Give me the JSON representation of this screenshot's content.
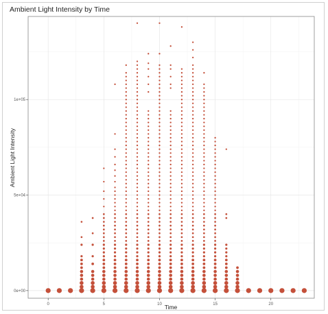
{
  "chart_data": {
    "type": "scatter",
    "title": "Ambient Light Intensity by Time",
    "xlabel": "Time",
    "ylabel": "Ambient Light Intensity",
    "xlim": [
      -1.8,
      23.9
    ],
    "ylim": [
      -4000,
      143500
    ],
    "x_ticks": [
      0,
      5,
      10,
      15,
      20
    ],
    "x_tick_labels": [
      "0",
      "5",
      "10",
      "15",
      "20"
    ],
    "y_ticks": [
      0,
      50000,
      100000
    ],
    "y_tick_labels": [
      "0e+00",
      "5e+04",
      "1e+05"
    ],
    "grid": true,
    "point_color": "#c4503a",
    "series": [
      {
        "x": 0,
        "y": [
          0
        ]
      },
      {
        "x": 1,
        "y": [
          0
        ]
      },
      {
        "x": 2,
        "y": [
          0
        ]
      },
      {
        "x": 3,
        "y": [
          0,
          2000,
          4000,
          6000,
          8000,
          10000,
          12000,
          14000,
          16000,
          18000,
          24000,
          28000,
          36000
        ]
      },
      {
        "x": 4,
        "y": [
          0,
          2000,
          4000,
          6000,
          8000,
          10000,
          14000,
          18000,
          24000,
          30000,
          38000
        ]
      },
      {
        "x": 5,
        "y": [
          0,
          2000,
          4000,
          6000,
          8000,
          10000,
          12000,
          14000,
          16000,
          18000,
          20000,
          22000,
          24000,
          26000,
          28000,
          30000,
          32000,
          34000,
          36000,
          38000,
          40000,
          44000,
          48000,
          52000,
          57000,
          64000
        ]
      },
      {
        "x": 6,
        "y": [
          0,
          2000,
          4000,
          6000,
          8000,
          10000,
          12000,
          14000,
          16000,
          18000,
          20000,
          22000,
          24000,
          26000,
          28000,
          30000,
          32000,
          34000,
          36000,
          38000,
          40000,
          42000,
          44000,
          46000,
          48000,
          50000,
          52000,
          54000,
          57000,
          60000,
          63000,
          66000,
          70000,
          74000,
          82000,
          108000
        ]
      },
      {
        "x": 7,
        "y": [
          0,
          2000,
          4000,
          6000,
          8000,
          10000,
          12000,
          14000,
          16000,
          18000,
          20000,
          22000,
          24000,
          26000,
          28000,
          30000,
          32000,
          34000,
          36000,
          38000,
          40000,
          42000,
          44000,
          46000,
          48000,
          50000,
          52000,
          54000,
          56000,
          58000,
          60000,
          62000,
          64000,
          66000,
          68000,
          70000,
          72000,
          74000,
          76000,
          78000,
          80000,
          82000,
          84000,
          86000,
          88000,
          90000,
          92000,
          94000,
          96000,
          98000,
          100000,
          102000,
          104000,
          106000,
          108000,
          110000,
          112000,
          114000,
          118000
        ]
      },
      {
        "x": 8,
        "y": [
          0,
          2000,
          4000,
          6000,
          8000,
          10000,
          12000,
          14000,
          16000,
          18000,
          20000,
          22000,
          24000,
          26000,
          28000,
          30000,
          32000,
          34000,
          36000,
          38000,
          40000,
          42000,
          44000,
          46000,
          48000,
          50000,
          52000,
          54000,
          56000,
          58000,
          60000,
          62000,
          64000,
          66000,
          68000,
          70000,
          72000,
          74000,
          76000,
          78000,
          80000,
          82000,
          84000,
          86000,
          88000,
          90000,
          92000,
          94000,
          96000,
          98000,
          100000,
          102000,
          104000,
          106000,
          108000,
          110000,
          112000,
          114000,
          116000,
          118000,
          120000,
          140000
        ]
      },
      {
        "x": 9,
        "y": [
          0,
          2000,
          4000,
          6000,
          8000,
          10000,
          12000,
          14000,
          16000,
          18000,
          20000,
          22000,
          24000,
          26000,
          28000,
          30000,
          32000,
          34000,
          36000,
          38000,
          40000,
          42000,
          44000,
          46000,
          48000,
          50000,
          52000,
          54000,
          56000,
          58000,
          60000,
          62000,
          64000,
          66000,
          68000,
          70000,
          72000,
          74000,
          76000,
          78000,
          80000,
          82000,
          84000,
          86000,
          88000,
          90000,
          92000,
          94000,
          104000,
          108000,
          112000,
          116000,
          119000,
          124000
        ]
      },
      {
        "x": 10,
        "y": [
          0,
          2000,
          4000,
          6000,
          8000,
          10000,
          12000,
          14000,
          16000,
          18000,
          20000,
          22000,
          24000,
          26000,
          28000,
          30000,
          32000,
          34000,
          36000,
          38000,
          40000,
          42000,
          44000,
          46000,
          48000,
          50000,
          52000,
          54000,
          56000,
          58000,
          60000,
          62000,
          64000,
          66000,
          68000,
          70000,
          72000,
          74000,
          76000,
          78000,
          80000,
          82000,
          84000,
          86000,
          88000,
          90000,
          92000,
          94000,
          96000,
          98000,
          100000,
          102000,
          104000,
          106000,
          108000,
          110000,
          112000,
          114000,
          116000,
          118000,
          124000,
          140000
        ]
      },
      {
        "x": 11,
        "y": [
          0,
          2000,
          4000,
          6000,
          8000,
          10000,
          12000,
          14000,
          16000,
          18000,
          20000,
          22000,
          24000,
          26000,
          28000,
          30000,
          32000,
          34000,
          36000,
          38000,
          40000,
          42000,
          44000,
          46000,
          48000,
          50000,
          52000,
          54000,
          56000,
          58000,
          60000,
          62000,
          64000,
          66000,
          68000,
          70000,
          72000,
          74000,
          76000,
          78000,
          80000,
          82000,
          84000,
          86000,
          88000,
          90000,
          92000,
          94000,
          106000,
          108000,
          112000,
          116000,
          118000,
          128000
        ]
      },
      {
        "x": 12,
        "y": [
          0,
          2000,
          4000,
          6000,
          8000,
          10000,
          12000,
          14000,
          16000,
          18000,
          20000,
          22000,
          24000,
          26000,
          28000,
          30000,
          32000,
          34000,
          36000,
          38000,
          40000,
          42000,
          44000,
          46000,
          48000,
          50000,
          52000,
          54000,
          56000,
          58000,
          60000,
          62000,
          64000,
          66000,
          68000,
          70000,
          72000,
          74000,
          76000,
          78000,
          80000,
          82000,
          84000,
          86000,
          88000,
          90000,
          92000,
          94000,
          96000,
          98000,
          100000,
          102000,
          104000,
          106000,
          108000,
          110000,
          112000,
          114000,
          116000,
          138000
        ]
      },
      {
        "x": 13,
        "y": [
          0,
          2000,
          4000,
          6000,
          8000,
          10000,
          12000,
          14000,
          16000,
          18000,
          20000,
          22000,
          24000,
          26000,
          28000,
          30000,
          32000,
          34000,
          36000,
          38000,
          40000,
          42000,
          44000,
          46000,
          48000,
          50000,
          52000,
          54000,
          56000,
          58000,
          60000,
          62000,
          64000,
          66000,
          68000,
          70000,
          72000,
          74000,
          76000,
          78000,
          80000,
          82000,
          84000,
          86000,
          88000,
          90000,
          92000,
          94000,
          96000,
          98000,
          100000,
          102000,
          104000,
          106000,
          108000,
          110000,
          112000,
          114000,
          116000,
          118000,
          122000,
          126000,
          130000
        ]
      },
      {
        "x": 14,
        "y": [
          0,
          2000,
          4000,
          6000,
          8000,
          10000,
          12000,
          14000,
          16000,
          18000,
          20000,
          22000,
          24000,
          26000,
          28000,
          30000,
          32000,
          34000,
          36000,
          38000,
          40000,
          42000,
          44000,
          46000,
          48000,
          50000,
          52000,
          54000,
          56000,
          58000,
          60000,
          62000,
          64000,
          66000,
          68000,
          70000,
          72000,
          74000,
          76000,
          78000,
          80000,
          82000,
          84000,
          86000,
          88000,
          90000,
          92000,
          94000,
          96000,
          98000,
          100000,
          102000,
          104000,
          106000,
          108000,
          114000
        ]
      },
      {
        "x": 15,
        "y": [
          0,
          2000,
          4000,
          6000,
          8000,
          10000,
          12000,
          14000,
          16000,
          18000,
          20000,
          22000,
          24000,
          26000,
          28000,
          30000,
          32000,
          34000,
          36000,
          38000,
          40000,
          42000,
          44000,
          46000,
          48000,
          50000,
          52000,
          54000,
          56000,
          58000,
          60000,
          62000,
          64000,
          66000,
          68000,
          70000,
          72000,
          74000,
          76000,
          78000,
          80000
        ]
      },
      {
        "x": 16,
        "y": [
          0,
          2000,
          4000,
          6000,
          8000,
          10000,
          12000,
          14000,
          16000,
          18000,
          20000,
          22000,
          24000,
          38000,
          40000,
          74000
        ]
      },
      {
        "x": 17,
        "y": [
          0,
          2000,
          4000,
          6000,
          8000,
          10000,
          12000
        ]
      },
      {
        "x": 18,
        "y": [
          0
        ]
      },
      {
        "x": 19,
        "y": [
          0
        ]
      },
      {
        "x": 20,
        "y": [
          0
        ]
      },
      {
        "x": 21,
        "y": [
          0
        ]
      },
      {
        "x": 22,
        "y": [
          0
        ]
      },
      {
        "x": 23,
        "y": [
          0
        ]
      }
    ]
  }
}
